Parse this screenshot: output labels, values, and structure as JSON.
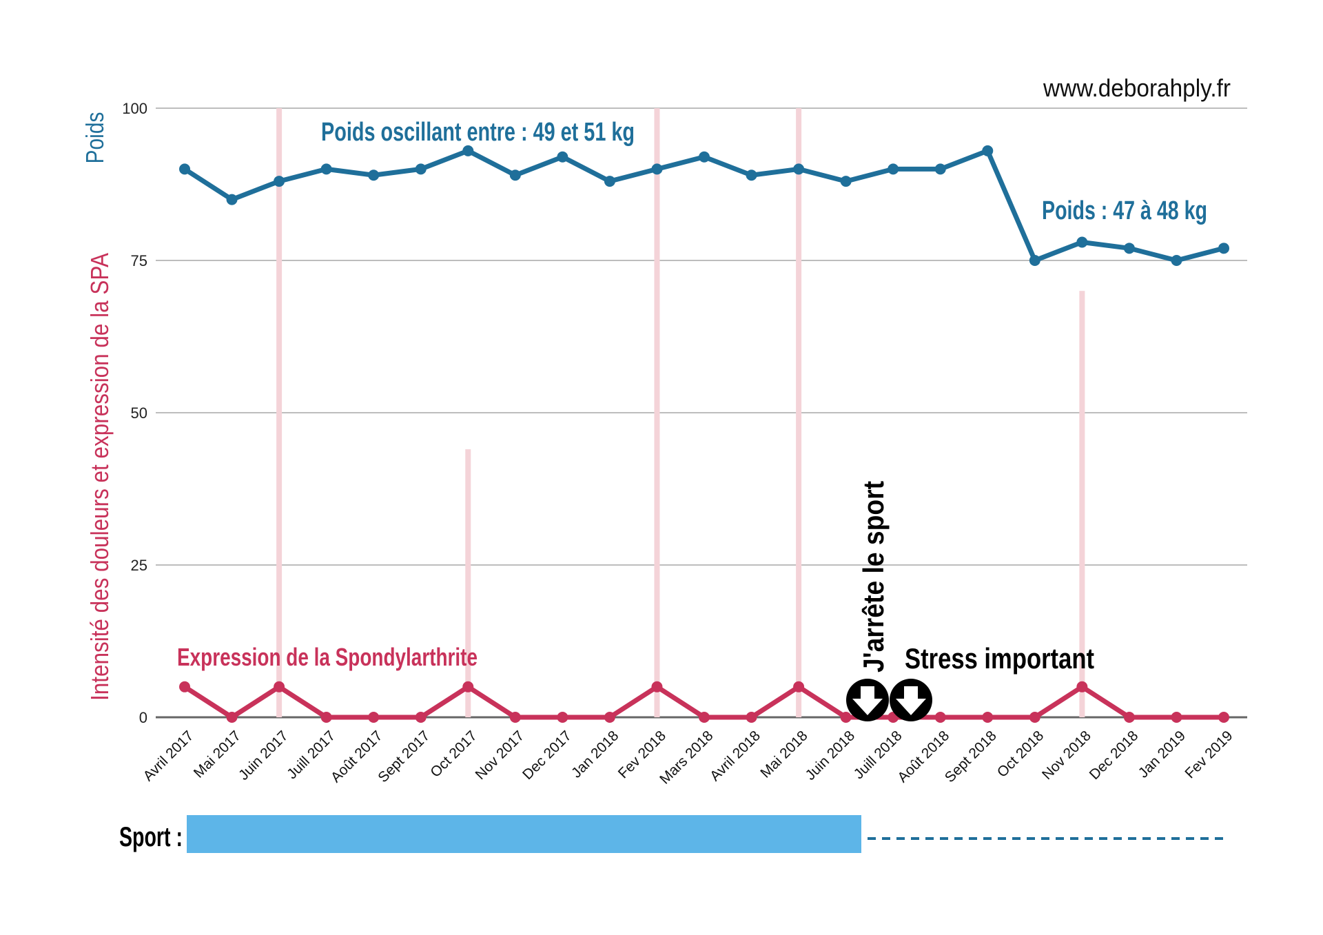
{
  "site": "www.deborahply.fr",
  "colors": {
    "weight": "#1f6f9a",
    "spa": "#c8325a",
    "pain": "#f4d3d8",
    "sport": "#5db5e8",
    "grid": "#bdbdbd"
  },
  "chart_data": {
    "type": "line",
    "x": [
      "Avril 2017",
      "Mai 2017",
      "Juin 2017",
      "Juill 2017",
      "Août 2017",
      "Sept 2017",
      "Oct 2017",
      "Nov 2017",
      "Dec 2017",
      "Jan 2018",
      "Fev 2018",
      "Mars 2018",
      "Avril 2018",
      "Mai 2018",
      "Juin 2018",
      "Juill 2018",
      "Août 2018",
      "Sept 2018",
      "Oct 2018",
      "Nov 2018",
      "Dec 2018",
      "Jan 2019",
      "Fev 2019"
    ],
    "ylim": [
      0,
      100
    ],
    "yticks": [
      "0",
      "25",
      "50",
      "75",
      "100"
    ],
    "ylabel_weight": "Poids",
    "ylabel_pain": "Intensité des douleurs et expression de la SPA",
    "grid": true,
    "series": [
      {
        "name": "Poids",
        "type": "line",
        "values": [
          90,
          85,
          88,
          90,
          89,
          90,
          93,
          89,
          92,
          88,
          90,
          92,
          89,
          90,
          88,
          90,
          90,
          93,
          75,
          78,
          77,
          75,
          77
        ]
      },
      {
        "name": "Expression de la Spondylarthrite",
        "type": "line",
        "values": [
          5,
          0,
          5,
          0,
          0,
          0,
          5,
          0,
          0,
          0,
          5,
          0,
          0,
          5,
          0,
          0,
          0,
          0,
          0,
          5,
          0,
          0,
          0
        ]
      },
      {
        "name": "Intensité des douleurs",
        "type": "bar",
        "values": [
          0,
          0,
          100,
          0,
          0,
          0,
          44,
          0,
          0,
          0,
          100,
          0,
          0,
          100,
          0,
          0,
          0,
          0,
          0,
          70,
          0,
          0,
          0
        ]
      }
    ],
    "annotations": {
      "weight_before": "Poids oscillant entre : 49 et 51 kg",
      "weight_after": "Poids : 47 à 48 kg",
      "spa_label": "Expression de la Spondylarthrite",
      "stop_sport": "J'arrête le sport",
      "stress": "Stress important"
    },
    "sport": {
      "label": "Sport :",
      "active_from": "Avril 2017",
      "active_until": "Juin 2018",
      "stopped_until": "Fev 2019"
    }
  }
}
